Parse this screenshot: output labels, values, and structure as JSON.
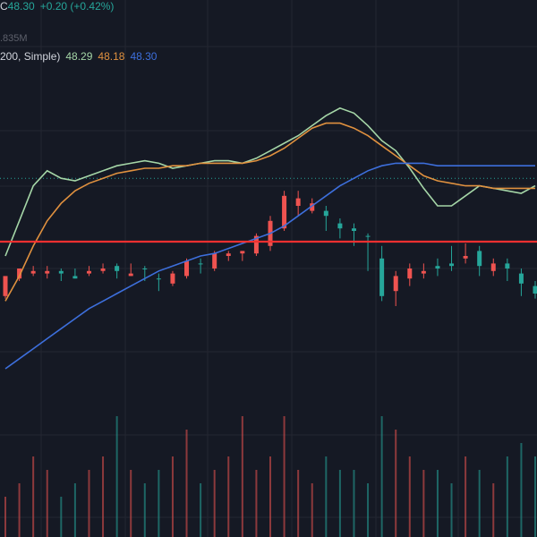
{
  "legend": {
    "ohlc_prefix": "C",
    "close": "48.30",
    "change": "+0.20 (+0.42%)",
    "volume": ".835M",
    "ma_label": "200, Simple)",
    "ma1_value": "48.29",
    "ma2_value": "48.18",
    "ma3_value": "48.30"
  },
  "colors": {
    "background": "#151924",
    "grid": "#232632",
    "up": "#26a69a",
    "down": "#ef5350",
    "ma1": "#a5d6a7",
    "ma2": "#e0913f",
    "ma3": "#3d6fdc",
    "hline": "#f23030",
    "price_line": "#26a69a",
    "legend_up": "#26a69a"
  },
  "chart_data": {
    "type": "line",
    "series": [
      {
        "values": [
          10,
          24,
          38,
          44,
          41,
          40,
          42,
          44,
          46,
          47,
          48,
          47,
          45,
          46,
          47,
          48,
          48,
          47,
          49,
          52,
          55,
          58,
          62,
          66,
          69,
          67,
          62,
          56,
          52,
          45,
          37,
          30,
          30,
          34,
          38,
          37,
          36,
          35,
          38
        ]
      },
      {
        "values": [
          -8,
          2,
          14,
          24,
          31,
          36,
          39,
          41,
          43,
          44,
          45,
          45,
          46,
          46,
          47,
          47,
          47,
          47,
          48,
          50,
          53,
          57,
          61,
          63,
          63,
          61,
          58,
          54,
          50,
          46,
          42,
          40,
          39,
          38,
          38,
          37,
          37,
          37,
          37
        ]
      },
      {
        "values": [
          -35,
          -31,
          -27,
          -23,
          -19,
          -15,
          -11,
          -8,
          -5,
          -2,
          1,
          4,
          6,
          8,
          10,
          11,
          13,
          15,
          17,
          19,
          22,
          26,
          30,
          34,
          38,
          41,
          44,
          46,
          47,
          47,
          47,
          46,
          46,
          46,
          46,
          46,
          46,
          46,
          46
        ]
      }
    ],
    "candles": [
      [
        2,
        -6,
        -3,
        -7,
        1
      ],
      [
        5,
        1,
        2,
        0,
        3
      ],
      [
        4,
        3,
        5,
        2,
        6
      ],
      [
        4,
        3,
        5,
        1,
        6
      ],
      [
        3,
        4,
        2,
        0,
        5
      ],
      [
        1,
        2,
        3,
        1,
        5
      ],
      [
        4,
        3,
        5,
        2,
        6
      ],
      [
        5,
        4,
        6,
        3,
        7
      ],
      [
        4,
        6,
        3,
        1,
        7
      ],
      [
        3,
        2,
        5,
        2,
        7
      ],
      [
        5,
        5,
        3,
        0,
        6
      ],
      [
        1,
        1,
        -1,
        -4,
        3
      ],
      [
        3,
        -1,
        2,
        -2,
        4
      ],
      [
        8,
        2,
        7,
        1,
        9
      ],
      [
        7,
        7,
        5,
        3,
        9
      ],
      [
        11,
        5,
        10,
        4,
        12
      ],
      [
        11,
        10,
        11,
        8,
        12
      ],
      [
        12,
        11,
        11,
        8,
        12
      ],
      [
        18,
        11,
        15,
        10,
        19
      ],
      [
        24,
        14,
        22,
        12,
        26
      ],
      [
        34,
        21,
        30,
        20,
        36
      ],
      [
        33,
        30,
        28,
        26,
        36
      ],
      [
        31,
        28,
        29,
        27,
        33
      ],
      [
        26,
        28,
        24,
        20,
        30
      ],
      [
        21,
        23,
        22,
        17,
        25
      ],
      [
        20,
        21,
        18,
        14,
        23
      ],
      [
        18,
        18,
        8,
        4,
        19
      ],
      [
        -6,
        9,
        -4,
        -8,
        14
      ],
      [
        2,
        -4,
        0,
        -10,
        4
      ],
      [
        5,
        1,
        3,
        -2,
        7
      ],
      [
        4,
        3,
        5,
        1,
        7
      ],
      [
        5,
        6,
        7,
        2,
        9
      ],
      [
        6,
        7,
        10,
        4,
        14
      ],
      [
        10,
        9,
        12,
        7,
        15
      ],
      [
        6,
        12,
        4,
        2,
        14
      ],
      [
        7,
        4,
        8,
        2,
        9
      ],
      [
        5,
        7,
        3,
        0,
        9
      ],
      [
        -1,
        3,
        -2,
        -6,
        5
      ],
      [
        -5,
        -2,
        -4,
        -7,
        0
      ]
    ],
    "volumes": [
      3,
      4,
      6,
      5,
      3,
      4,
      5,
      6,
      9,
      5,
      4,
      5,
      6,
      8,
      4,
      5,
      6,
      9,
      5,
      6,
      9,
      5,
      4,
      6,
      5,
      5,
      4,
      9,
      8,
      6,
      5,
      5,
      4,
      6,
      5,
      4,
      6,
      7,
      6
    ]
  }
}
